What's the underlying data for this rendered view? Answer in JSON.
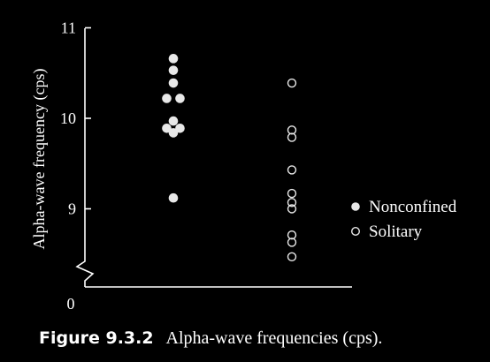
{
  "chart_data": {
    "type": "scatter",
    "title": "",
    "ylabel": "Alpha-wave frequency (cps)",
    "xlabel": "",
    "ylim": [
      8.4,
      11
    ],
    "y_ticks": [
      {
        "value": 11,
        "label": "11"
      },
      {
        "value": 10,
        "label": "10"
      },
      {
        "value": 9,
        "label": "9"
      }
    ],
    "axis_break_label": "0",
    "legend_position": "right",
    "series": [
      {
        "name": "Nonconfined",
        "marker": "filled-circle",
        "color": "#e8e8e8",
        "values": [
          10.66,
          10.53,
          10.39,
          10.22,
          10.22,
          9.97,
          9.89,
          9.89,
          9.84,
          9.12
        ]
      },
      {
        "name": "Solitary",
        "marker": "open-circle",
        "color": "#e8e8e8",
        "values": [
          10.39,
          9.87,
          9.79,
          9.43,
          9.17,
          9.07,
          9.0,
          8.71,
          8.63,
          8.47
        ]
      }
    ]
  },
  "caption": {
    "label": "Figure 9.3.2",
    "text": "Alpha-wave frequencies (cps)."
  }
}
